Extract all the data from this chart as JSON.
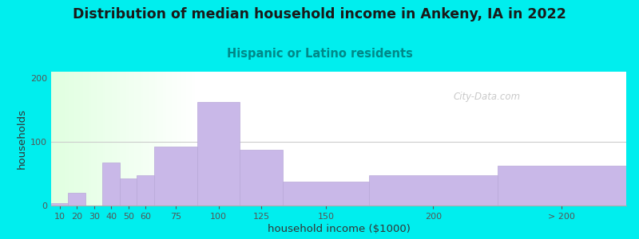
{
  "title": "Distribution of median household income in Ankeny, IA in 2022",
  "subtitle": "Hispanic or Latino residents",
  "xlabel": "household income ($1000)",
  "ylabel": "households",
  "background_outer": "#00eeee",
  "bar_color": "#c9b8e8",
  "bar_edge_color": "#b8a8d8",
  "title_fontsize": 12.5,
  "title_color": "#1a1a1a",
  "subtitle_fontsize": 10.5,
  "subtitle_color": "#008888",
  "xlabel_fontsize": 9.5,
  "ylabel_fontsize": 9.5,
  "tick_label_fontsize": 8,
  "tick_labels": [
    "10",
    "20",
    "30",
    "40",
    "50",
    "60",
    "75",
    "100",
    "125",
    "150",
    "200",
    "> 200"
  ],
  "bar_heights": [
    4,
    20,
    0,
    67,
    42,
    48,
    92,
    163,
    88,
    38,
    47,
    63
  ],
  "bar_lefts": [
    5,
    15,
    25,
    35,
    45,
    55,
    65,
    90,
    115,
    140,
    190,
    265
  ],
  "bar_widths": [
    10,
    10,
    10,
    10,
    10,
    10,
    25,
    25,
    25,
    50,
    75,
    75
  ],
  "xlim": [
    5,
    340
  ],
  "ylim": [
    0,
    210
  ],
  "yticks": [
    0,
    100,
    200
  ],
  "watermark": "City-Data.com"
}
